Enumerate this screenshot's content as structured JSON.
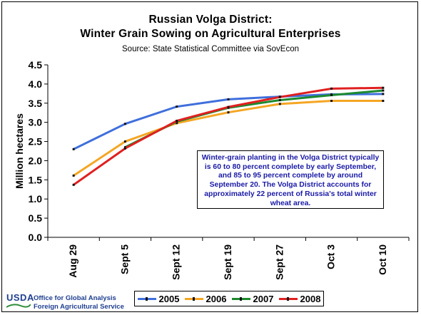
{
  "title_line1": "Russian Volga District:",
  "title_line2": "Winter Grain Sowing  on Agricultural Enterprises",
  "source": "Source:  State Statistical Committee via SovEcon",
  "annotation": "Winter-grain planting in the Volga District typically is 60 to 80 percent complete by early September, and 85 to 95 percent complete by around September 20.  The Volga District accounts for approximately 22 percent of Russia's total winter wheat area.",
  "footer": {
    "logo_text": "USDA",
    "org_line1": "Office for Global Analysis",
    "org_line2": "Foreign Agricultural Service"
  },
  "chart_data": {
    "type": "line",
    "ylabel": "Million hectares",
    "xlabel": "",
    "categories": [
      "Aug 29",
      "Sept 5",
      "Sept 12",
      "Sept 19",
      "Sept 27",
      "Oct 3",
      "Oct 10"
    ],
    "ylim": [
      0,
      4.5
    ],
    "yticks": [
      "0.0",
      "0.5",
      "1.0",
      "1.5",
      "2.0",
      "2.5",
      "3.0",
      "3.5",
      "4.0",
      "4.5"
    ],
    "grid": false,
    "legend_position": "bottom",
    "series": [
      {
        "name": "2005",
        "color": "#3f6fdc",
        "values": [
          2.3,
          2.96,
          3.41,
          3.6,
          3.67,
          3.73,
          3.74
        ]
      },
      {
        "name": "2006",
        "color": "#f5a623",
        "values": [
          1.61,
          2.5,
          2.98,
          3.26,
          3.48,
          3.56,
          3.56
        ]
      },
      {
        "name": "2007",
        "color": "#1c8a2e",
        "values": [
          null,
          2.35,
          3.02,
          3.38,
          3.58,
          3.71,
          3.83
        ]
      },
      {
        "name": "2008",
        "color": "#e02020",
        "values": [
          1.37,
          2.32,
          3.04,
          3.4,
          3.66,
          3.88,
          3.9
        ]
      }
    ]
  }
}
